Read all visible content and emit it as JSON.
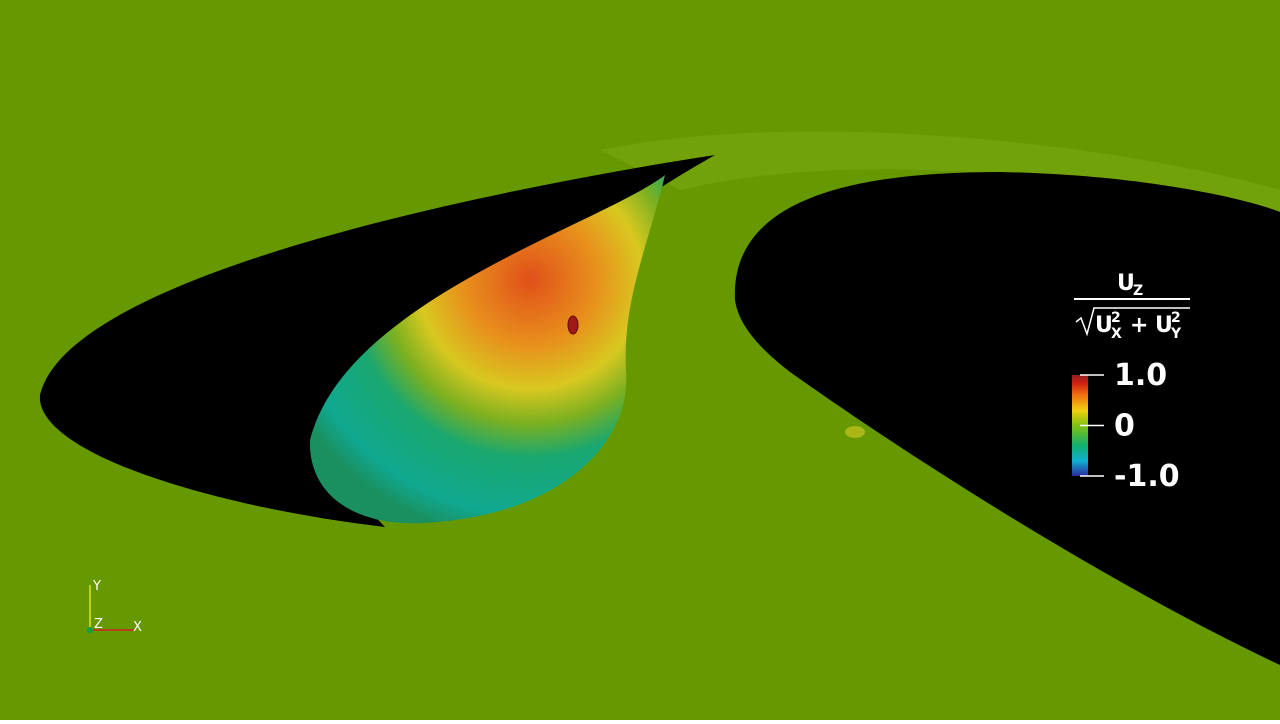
{
  "colorbar": {
    "title": {
      "numerator": {
        "base": "U",
        "sub": "Z"
      },
      "denominator": {
        "term1": {
          "base": "U",
          "sub": "X",
          "sup": "2"
        },
        "op": "+",
        "term2": {
          "base": "U",
          "sub": "Y",
          "sup": "2"
        }
      }
    },
    "range": [
      -1,
      1
    ],
    "ticks": [
      {
        "value": 1,
        "label": "1.0"
      },
      {
        "value": 0,
        "label": "0"
      },
      {
        "value": -1,
        "label": "-1.0"
      }
    ]
  },
  "axes_triad": {
    "y": "Y",
    "z": "Z",
    "x": "X"
  }
}
